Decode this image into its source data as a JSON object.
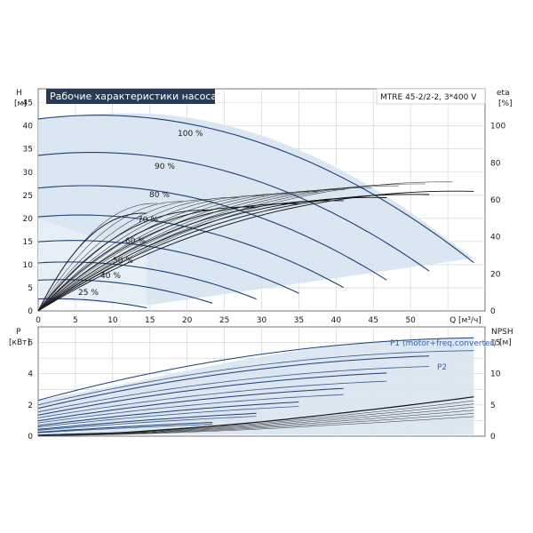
{
  "chart_data": [
    {
      "type": "line",
      "title": "Рабочие характеристики насоса",
      "model": "MTRE 45-2/2-2, 3*400 V",
      "xlabel": "Q [м³/ч]",
      "ylabel_top": "H",
      "ylabel_unit": "[м]",
      "y2label_top": "eta",
      "y2label_unit": "[%]",
      "xlim": [
        0,
        60
      ],
      "ylim": [
        0,
        48
      ],
      "y2lim": [
        0,
        120
      ],
      "x_ticks": [
        "0",
        "5",
        "10",
        "15",
        "20",
        "25",
        "30",
        "35",
        "40",
        "45",
        "50",
        "Q [м³/ч]"
      ],
      "y_ticks": [
        "0",
        "5",
        "10",
        "15",
        "20",
        "25",
        "30",
        "35",
        "40",
        "45"
      ],
      "y2_ticks": [
        "0",
        "20",
        "40",
        "60",
        "80",
        "100"
      ],
      "speed_labels": [
        "100 %",
        "90 %",
        "80 %",
        "70 %",
        "60 %",
        "50 %",
        "40 %",
        "25 %"
      ],
      "speed_curves": [
        {
          "name": "100 %",
          "speed": 1.0,
          "qmax": 58.5
        },
        {
          "name": "90 %",
          "speed": 0.9,
          "qmax": 52.5
        },
        {
          "name": "80 %",
          "speed": 0.8,
          "qmax": 46.8
        },
        {
          "name": "70 %",
          "speed": 0.7,
          "qmax": 41.0
        },
        {
          "name": "60 %",
          "speed": 0.6,
          "qmax": 35.0
        },
        {
          "name": "50 %",
          "speed": 0.5,
          "qmax": 29.3
        },
        {
          "name": "40 %",
          "speed": 0.4,
          "qmax": 23.4
        },
        {
          "name": "25 %",
          "speed": 0.25,
          "qmax": 14.6
        }
      ],
      "head_model": {
        "h0": 41.5,
        "a": 0.2,
        "b": 0.0125
      },
      "envelope": {
        "max_head": [
          [
            0,
            41.5
          ],
          [
            5,
            42.3
          ],
          [
            10,
            42.7
          ],
          [
            15,
            42.6
          ],
          [
            20,
            41.8
          ],
          [
            25,
            40.2
          ],
          [
            30,
            37.9
          ],
          [
            35,
            34.8
          ],
          [
            40,
            31.0
          ],
          [
            45,
            26.5
          ],
          [
            50,
            21.3
          ],
          [
            55,
            15.4
          ],
          [
            58.5,
            11.4
          ]
        ],
        "min_head": [
          [
            0,
            2.6
          ],
          [
            5,
            2.6
          ],
          [
            10,
            2.0
          ],
          [
            14.6,
            1.2
          ]
        ]
      },
      "eta_curves_qmax": [
        14.6,
        23.4,
        29.3,
        35.0,
        41.0,
        46.8,
        52.5,
        58.5
      ],
      "eta_peak_percent": 62
    },
    {
      "type": "line",
      "ylabel_top": "P",
      "ylabel_unit": "[кВт]",
      "y2label_top": "NPSH",
      "y2label_unit": "[м]",
      "xlim": [
        0,
        60
      ],
      "ylim": [
        0,
        7
      ],
      "y2lim": [
        0,
        17.5
      ],
      "y_ticks": [
        "0",
        "2",
        "4",
        "6"
      ],
      "y2_ticks": [
        "0",
        "5",
        "10",
        "15"
      ],
      "series": [
        {
          "name": "P1 (motor+freq.converter)"
        },
        {
          "name": "P2"
        }
      ],
      "p1_top": [
        [
          0,
          2.3
        ],
        [
          10,
          3.2
        ],
        [
          20,
          4.2
        ],
        [
          30,
          5.1
        ],
        [
          40,
          5.8
        ],
        [
          50,
          6.2
        ],
        [
          58.5,
          6.3
        ]
      ],
      "p2_top": [
        [
          0,
          2.0
        ],
        [
          10,
          2.8
        ],
        [
          20,
          3.8
        ],
        [
          30,
          4.6
        ],
        [
          40,
          5.2
        ],
        [
          50,
          5.4
        ],
        [
          58.5,
          5.5
        ]
      ],
      "npsh": [
        [
          0,
          0.1
        ],
        [
          10,
          0.5
        ],
        [
          20,
          1.3
        ],
        [
          30,
          2.3
        ],
        [
          40,
          3.6
        ],
        [
          50,
          5.0
        ],
        [
          58.5,
          6.3
        ]
      ]
    }
  ],
  "colors": {
    "curve": "#1f3f78",
    "envelope_fill": "#d6e3ef",
    "envelope_fill_light": "#e8f0f7",
    "title_bg": "#2a3a55",
    "legend": "#3a62a6",
    "eta": "#111111"
  }
}
